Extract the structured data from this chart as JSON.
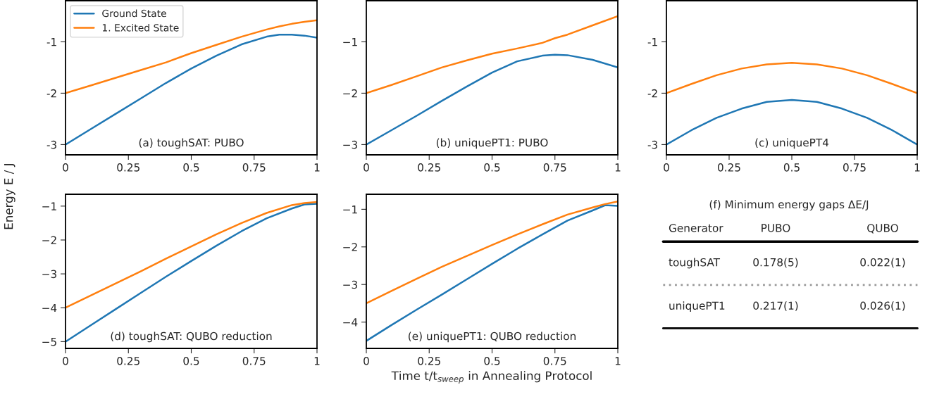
{
  "chart_data": [
    {
      "type": "line",
      "title": "(a) toughSAT: PUBO",
      "ylabel": "Energy E / J",
      "legend": "top left",
      "x": [
        0,
        0.1,
        0.2,
        0.3,
        0.4,
        0.5,
        0.6,
        0.7,
        0.8,
        0.85,
        0.9,
        0.95,
        1
      ],
      "series": [
        {
          "name": "Ground State",
          "color": "#1f77b4",
          "values": [
            -3,
            -2.7,
            -2.4,
            -2.1,
            -1.8,
            -1.52,
            -1.27,
            -1.05,
            -0.9,
            -0.86,
            -0.86,
            -0.88,
            -0.92
          ]
        },
        {
          "name": "1. Excited State",
          "color": "#ff7f0e",
          "values": [
            -2,
            -1.85,
            -1.7,
            -1.55,
            -1.4,
            -1.22,
            -1.06,
            -0.9,
            -0.76,
            -0.7,
            -0.65,
            -0.61,
            -0.58
          ]
        }
      ],
      "xlim": [
        0,
        1
      ],
      "ylim": [
        -3.2,
        -0.2
      ],
      "xticks": [
        0,
        0.25,
        0.5,
        0.75,
        1
      ],
      "yticks": [
        {
          "value": -3,
          "label": "-3"
        },
        {
          "value": -2,
          "label": "-2"
        },
        {
          "value": -1,
          "label": "-1"
        }
      ]
    },
    {
      "type": "line",
      "title": "(b) uniquePT1: PUBO",
      "x": [
        0,
        0.1,
        0.2,
        0.3,
        0.4,
        0.5,
        0.6,
        0.7,
        0.75,
        0.8,
        0.9,
        1
      ],
      "series": [
        {
          "color": "#1f77b4",
          "values": [
            -3,
            -2.72,
            -2.44,
            -2.15,
            -1.87,
            -1.6,
            -1.38,
            -1.27,
            -1.25,
            -1.26,
            -1.35,
            -1.5
          ]
        },
        {
          "color": "#ff7f0e",
          "values": [
            -2,
            -1.84,
            -1.67,
            -1.5,
            -1.36,
            -1.23,
            -1.13,
            -1.02,
            -0.93,
            -0.86,
            -0.68,
            -0.5
          ]
        }
      ],
      "xlim": [
        0,
        1
      ],
      "ylim": [
        -3.2,
        -0.2
      ],
      "xticks": [
        0,
        0.25,
        0.5,
        0.75,
        1
      ],
      "yticks": [
        {
          "value": -3,
          "label": "−3"
        },
        {
          "value": -2,
          "label": "−2"
        },
        {
          "value": -1,
          "label": "−1"
        }
      ]
    },
    {
      "type": "line",
      "title": "(c) uniquePT4",
      "x": [
        0,
        0.1,
        0.2,
        0.3,
        0.4,
        0.5,
        0.6,
        0.7,
        0.8,
        0.9,
        1
      ],
      "series": [
        {
          "color": "#1f77b4",
          "values": [
            -3,
            -2.72,
            -2.48,
            -2.3,
            -2.17,
            -2.13,
            -2.17,
            -2.3,
            -2.48,
            -2.72,
            -3
          ]
        },
        {
          "color": "#ff7f0e",
          "values": [
            -2,
            -1.82,
            -1.65,
            -1.52,
            -1.44,
            -1.41,
            -1.44,
            -1.52,
            -1.65,
            -1.82,
            -2
          ]
        }
      ],
      "xlim": [
        0,
        1
      ],
      "ylim": [
        -3.2,
        -0.2
      ],
      "xticks": [
        0,
        0.25,
        0.5,
        0.75,
        1
      ],
      "yticks": [
        {
          "value": -3,
          "label": "-3"
        },
        {
          "value": -2,
          "label": "-2"
        },
        {
          "value": -1,
          "label": "-1"
        }
      ]
    },
    {
      "type": "line",
      "title": "(d) toughSAT: QUBO reduction",
      "x": [
        0,
        0.1,
        0.2,
        0.3,
        0.4,
        0.5,
        0.6,
        0.7,
        0.8,
        0.9,
        0.95,
        1
      ],
      "series": [
        {
          "color": "#1f77b4",
          "values": [
            -5,
            -4.52,
            -4.04,
            -3.56,
            -3.08,
            -2.62,
            -2.17,
            -1.74,
            -1.36,
            -1.07,
            -0.95,
            -0.93
          ]
        },
        {
          "color": "#ff7f0e",
          "values": [
            -4,
            -3.64,
            -3.28,
            -2.92,
            -2.55,
            -2.19,
            -1.83,
            -1.5,
            -1.2,
            -0.97,
            -0.91,
            -0.88
          ]
        }
      ],
      "xlim": [
        0,
        1
      ],
      "ylim": [
        -5.2,
        -0.65
      ],
      "xticks": [
        0,
        0.25,
        0.5,
        0.75,
        1
      ],
      "yticks": [
        {
          "value": -5,
          "label": "−5"
        },
        {
          "value": -4,
          "label": "−4"
        },
        {
          "value": -3,
          "label": "−3"
        },
        {
          "value": -2,
          "label": "−2"
        },
        {
          "value": -1,
          "label": "−1"
        }
      ]
    },
    {
      "type": "line",
      "title": "(e) uniquePT1: QUBO reduction",
      "xlabel": "Time t/t$_{sweep}$ in Annealing Protocol",
      "x": [
        0,
        0.1,
        0.2,
        0.3,
        0.4,
        0.5,
        0.6,
        0.7,
        0.8,
        0.9,
        0.95,
        1
      ],
      "series": [
        {
          "color": "#1f77b4",
          "values": [
            -4.5,
            -4.08,
            -3.67,
            -3.27,
            -2.86,
            -2.45,
            -2.05,
            -1.67,
            -1.3,
            -1.03,
            -0.89,
            -0.91
          ]
        },
        {
          "color": "#ff7f0e",
          "values": [
            -3.5,
            -3.17,
            -2.85,
            -2.53,
            -2.24,
            -1.95,
            -1.67,
            -1.4,
            -1.14,
            -0.95,
            -0.86,
            -0.79
          ]
        }
      ],
      "xlim": [
        0,
        1
      ],
      "ylim": [
        -4.7,
        -0.6
      ],
      "xticks": [
        0,
        0.25,
        0.5,
        0.75,
        1
      ],
      "yticks": [
        {
          "value": -4,
          "label": "−4"
        },
        {
          "value": -3,
          "label": "−3"
        },
        {
          "value": -2,
          "label": "−2"
        },
        {
          "value": -1,
          "label": "−1"
        }
      ]
    },
    {
      "type": "other",
      "title": "(f) Minimum energy gaps ΔE/J",
      "annotations": [
        "Generator"
      ],
      "categories": [
        "PUBO",
        "QUBO"
      ],
      "y_categories": [
        "toughSAT",
        "uniquePT1"
      ],
      "cell_labels": [
        [
          "0.178(5)",
          "0.022(1)"
        ],
        [
          "0.217(1)",
          "0.026(1)"
        ]
      ]
    }
  ]
}
